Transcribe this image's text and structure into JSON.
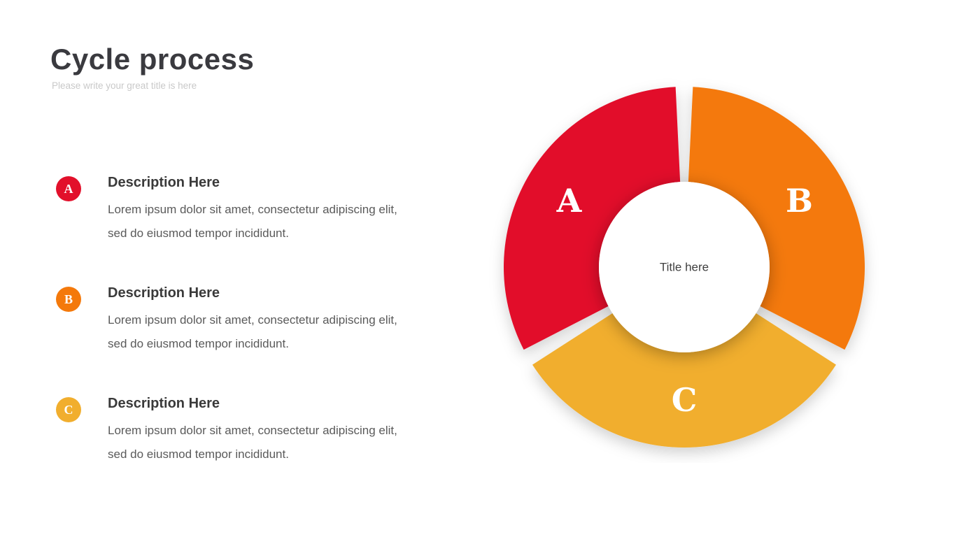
{
  "slide": {
    "title": "Cycle process",
    "subtitle": "Please write your great title is here"
  },
  "items": [
    {
      "badge": "A",
      "color": "#e2102b",
      "title": "Description Here",
      "body": "Lorem ipsum dolor sit amet, consectetur adipiscing elit, sed do eiusmod tempor incididunt."
    },
    {
      "badge": "B",
      "color": "#f4790b",
      "title": "Description Here",
      "body": "Lorem ipsum dolor sit amet, consectetur adipiscing elit, sed do eiusmod tempor incididunt."
    },
    {
      "badge": "C",
      "color": "#f1ae2e",
      "title": "Description Here",
      "body": "Lorem ipsum dolor sit amet, consectetur adipiscing elit, sed do eiusmod tempor incididunt."
    }
  ],
  "chart_data": {
    "type": "pie",
    "variant": "donut",
    "title": "Cycle process",
    "center_label": "Title here",
    "gap_deg": 5.5,
    "outer_radius": 258,
    "inner_radius": 122,
    "label_radius": 190,
    "segments": [
      {
        "label": "A",
        "value": 1,
        "share_deg": 120,
        "start_deg": 240,
        "end_deg": 360,
        "color": "#e2102b"
      },
      {
        "label": "B",
        "value": 1,
        "share_deg": 120,
        "start_deg": 0,
        "end_deg": 120,
        "color": "#f4790b"
      },
      {
        "label": "C",
        "value": 1,
        "share_deg": 120,
        "start_deg": 120,
        "end_deg": 240,
        "color": "#f1ae2e"
      }
    ]
  }
}
